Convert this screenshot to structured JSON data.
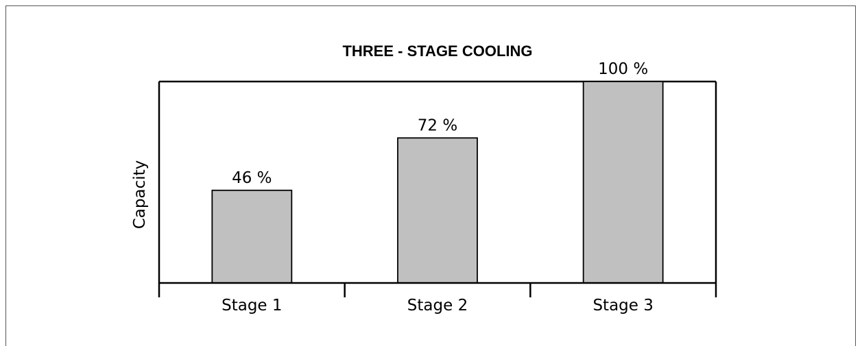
{
  "chart_data": {
    "type": "bar",
    "title": "THREE - STAGE COOLING",
    "ylabel": "Capacity",
    "xlabel": "",
    "categories": [
      "Stage 1",
      "Stage 2",
      "Stage 3"
    ],
    "values": [
      46,
      72,
      100
    ],
    "value_labels": [
      "46 %",
      "72 %",
      "100 %"
    ],
    "ylim": [
      0,
      100
    ],
    "grid": false,
    "colors": {
      "bar_fill": "#c0c0c0",
      "bar_stroke": "#000000"
    }
  }
}
